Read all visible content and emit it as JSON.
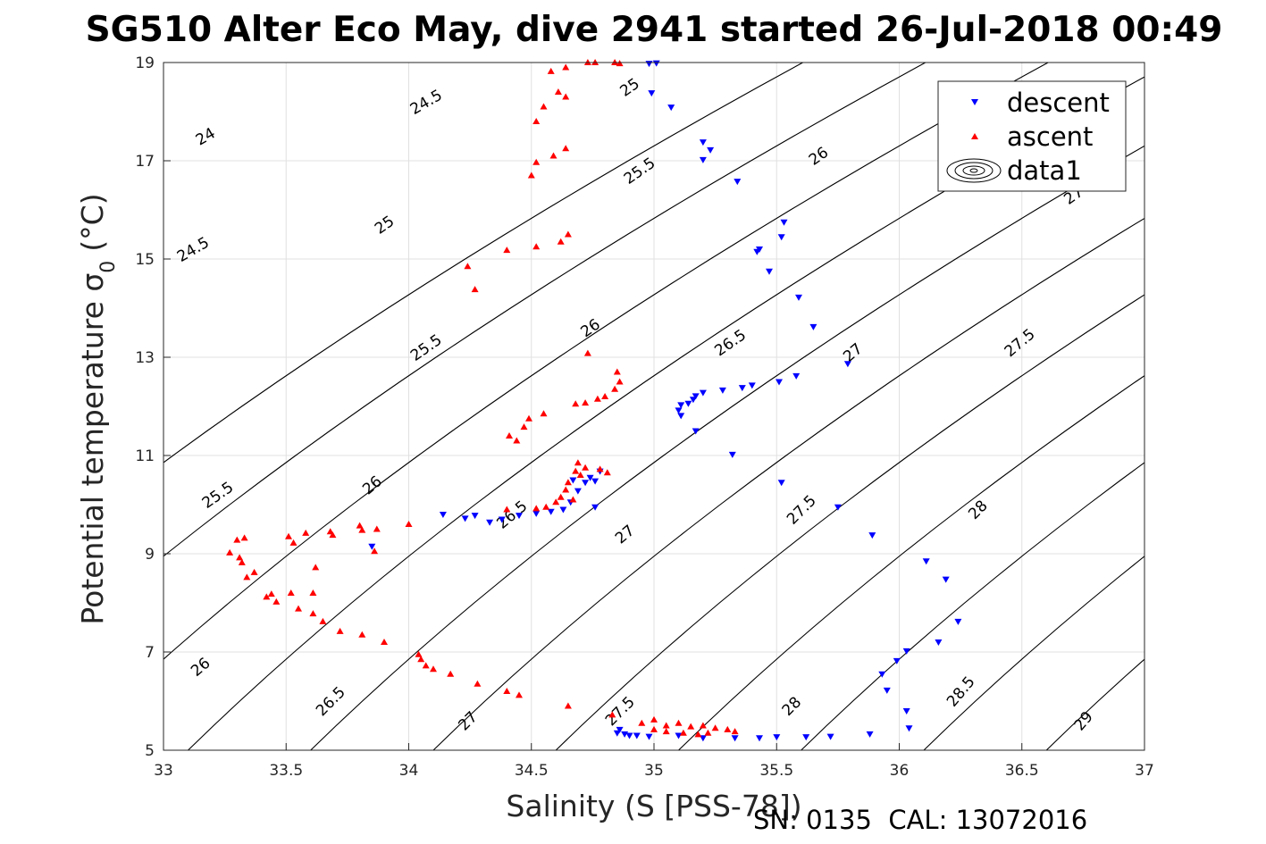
{
  "chart_data": {
    "type": "scatter",
    "title": "SG510 Alter Eco May, dive 2941 started 26-Jul-2018 00:49",
    "xlabel": "Salinity (S [PSS-78])",
    "ylabel": "Potential temperature σ",
    "ylabel_subscript": "0",
    "ylabel_unit": "(°C)",
    "xlim": [
      33,
      37
    ],
    "ylim": [
      5,
      19
    ],
    "x_ticks": [
      "33",
      "33.5",
      "34",
      "34.5",
      "35",
      "35.5",
      "36",
      "36.5",
      "37"
    ],
    "y_ticks": [
      "5",
      "7",
      "9",
      "11",
      "13",
      "15",
      "17",
      "19"
    ],
    "grid": true,
    "legend_position": "top-right",
    "legend": [
      "descent",
      "ascent",
      "data1"
    ],
    "footer": "SN: 0135  CAL: 13072016",
    "contour_labels": [
      {
        "text": "24",
        "at": [
          33.17,
          17.5
        ],
        "rot": -30
      },
      {
        "text": "24.5",
        "at": [
          33.12,
          15.2
        ],
        "rot": -30
      },
      {
        "text": "24.5",
        "at": [
          34.07,
          18.2
        ],
        "rot": -30
      },
      {
        "text": "25",
        "at": [
          33.9,
          15.7
        ],
        "rot": -35
      },
      {
        "text": "25",
        "at": [
          34.9,
          18.5
        ],
        "rot": -35
      },
      {
        "text": "25.5",
        "at": [
          33.22,
          10.2
        ],
        "rot": -35
      },
      {
        "text": "25.5",
        "at": [
          34.07,
          13.2
        ],
        "rot": -35
      },
      {
        "text": "25.5",
        "at": [
          34.94,
          16.8
        ],
        "rot": -35
      },
      {
        "text": "26",
        "at": [
          33.15,
          6.7
        ],
        "rot": -40
      },
      {
        "text": "26",
        "at": [
          33.85,
          10.4
        ],
        "rot": -40
      },
      {
        "text": "26",
        "at": [
          34.74,
          13.6
        ],
        "rot": -35
      },
      {
        "text": "26",
        "at": [
          35.67,
          17.1
        ],
        "rot": -35
      },
      {
        "text": "26.5",
        "at": [
          33.68,
          6.0
        ],
        "rot": -45
      },
      {
        "text": "26.5",
        "at": [
          34.42,
          9.8
        ],
        "rot": -40
      },
      {
        "text": "26.5",
        "at": [
          35.31,
          13.3
        ],
        "rot": -35
      },
      {
        "text": "27",
        "at": [
          34.24,
          5.6
        ],
        "rot": -45
      },
      {
        "text": "27",
        "at": [
          34.88,
          9.4
        ],
        "rot": -40
      },
      {
        "text": "27",
        "at": [
          35.81,
          13.1
        ],
        "rot": -40
      },
      {
        "text": "27",
        "at": [
          36.71,
          16.3
        ],
        "rot": -35
      },
      {
        "text": "27.5",
        "at": [
          34.86,
          5.8
        ],
        "rot": -45
      },
      {
        "text": "27.5",
        "at": [
          35.6,
          9.9
        ],
        "rot": -45
      },
      {
        "text": "27.5",
        "at": [
          36.49,
          13.3
        ],
        "rot": -40
      },
      {
        "text": "28",
        "at": [
          35.56,
          5.9
        ],
        "rot": -45
      },
      {
        "text": "28",
        "at": [
          36.32,
          9.9
        ],
        "rot": -45
      },
      {
        "text": "28.5",
        "at": [
          36.25,
          6.2
        ],
        "rot": -50
      },
      {
        "text": "29",
        "at": [
          36.75,
          5.6
        ],
        "rot": -50
      }
    ],
    "colors": {
      "descent": "#0000ff",
      "ascent": "#ff0000",
      "contour": "#000000",
      "grid": "#e0e0e0"
    },
    "series": [
      {
        "name": "descent",
        "marker": "triangle-down",
        "points": [
          [
            34.98,
            18.98
          ],
          [
            35.01,
            18.99
          ],
          [
            34.99,
            18.38
          ],
          [
            35.07,
            18.09
          ],
          [
            35.2,
            17.38
          ],
          [
            35.23,
            17.22
          ],
          [
            35.2,
            17.02
          ],
          [
            35.34,
            16.58
          ],
          [
            35.53,
            15.75
          ],
          [
            35.43,
            15.2
          ],
          [
            35.42,
            15.15
          ],
          [
            35.52,
            15.45
          ],
          [
            35.47,
            14.75
          ],
          [
            35.59,
            14.22
          ],
          [
            35.65,
            13.62
          ],
          [
            35.79,
            12.87
          ],
          [
            35.58,
            12.62
          ],
          [
            35.51,
            12.5
          ],
          [
            35.4,
            12.43
          ],
          [
            35.36,
            12.38
          ],
          [
            35.28,
            12.33
          ],
          [
            35.2,
            12.28
          ],
          [
            35.17,
            12.21
          ],
          [
            35.16,
            12.14
          ],
          [
            35.14,
            12.06
          ],
          [
            35.11,
            12.03
          ],
          [
            35.1,
            11.92
          ],
          [
            35.11,
            11.81
          ],
          [
            35.17,
            11.5
          ],
          [
            35.32,
            11.02
          ],
          [
            35.52,
            10.45
          ],
          [
            35.75,
            9.95
          ],
          [
            35.89,
            9.38
          ],
          [
            34.14,
            9.8
          ],
          [
            34.23,
            9.72
          ],
          [
            34.27,
            9.78
          ],
          [
            34.33,
            9.64
          ],
          [
            34.38,
            9.7
          ],
          [
            34.45,
            9.78
          ],
          [
            34.52,
            9.82
          ],
          [
            34.58,
            9.86
          ],
          [
            34.63,
            9.9
          ],
          [
            34.66,
            10.05
          ],
          [
            34.69,
            10.28
          ],
          [
            34.72,
            10.45
          ],
          [
            34.74,
            10.55
          ],
          [
            34.76,
            10.48
          ],
          [
            34.78,
            10.68
          ],
          [
            34.67,
            10.5
          ],
          [
            34.76,
            9.95
          ],
          [
            33.85,
            9.15
          ],
          [
            36.11,
            8.85
          ],
          [
            36.19,
            8.48
          ],
          [
            36.24,
            7.62
          ],
          [
            36.16,
            7.2
          ],
          [
            36.03,
            7.02
          ],
          [
            35.99,
            6.82
          ],
          [
            35.93,
            6.55
          ],
          [
            35.95,
            6.22
          ],
          [
            36.03,
            5.8
          ],
          [
            36.04,
            5.45
          ],
          [
            35.88,
            5.33
          ],
          [
            35.72,
            5.28
          ],
          [
            35.62,
            5.27
          ],
          [
            35.5,
            5.27
          ],
          [
            35.43,
            5.25
          ],
          [
            35.33,
            5.25
          ],
          [
            35.2,
            5.25
          ],
          [
            35.1,
            5.3
          ],
          [
            34.98,
            5.28
          ],
          [
            34.93,
            5.3
          ],
          [
            34.88,
            5.33
          ],
          [
            34.85,
            5.35
          ],
          [
            34.86,
            5.42
          ],
          [
            34.9,
            5.3
          ]
        ]
      },
      {
        "name": "ascent",
        "marker": "triangle-up",
        "points": [
          [
            34.73,
            19.0
          ],
          [
            34.76,
            19.0
          ],
          [
            34.84,
            19.0
          ],
          [
            34.86,
            18.98
          ],
          [
            34.64,
            18.9
          ],
          [
            34.58,
            18.82
          ],
          [
            34.61,
            18.4
          ],
          [
            34.64,
            18.3
          ],
          [
            34.55,
            18.1
          ],
          [
            34.52,
            17.8
          ],
          [
            34.64,
            17.25
          ],
          [
            34.59,
            17.1
          ],
          [
            34.52,
            16.97
          ],
          [
            34.5,
            16.7
          ],
          [
            34.65,
            15.5
          ],
          [
            34.62,
            15.35
          ],
          [
            34.52,
            15.25
          ],
          [
            34.4,
            15.18
          ],
          [
            34.24,
            14.85
          ],
          [
            34.27,
            14.38
          ],
          [
            34.73,
            13.08
          ],
          [
            34.85,
            12.7
          ],
          [
            34.86,
            12.5
          ],
          [
            34.84,
            12.35
          ],
          [
            34.8,
            12.2
          ],
          [
            34.77,
            12.15
          ],
          [
            34.72,
            12.07
          ],
          [
            34.68,
            12.05
          ],
          [
            34.55,
            11.85
          ],
          [
            34.49,
            11.75
          ],
          [
            34.47,
            11.58
          ],
          [
            34.44,
            11.3
          ],
          [
            34.41,
            11.4
          ],
          [
            34.69,
            10.85
          ],
          [
            34.72,
            10.75
          ],
          [
            34.78,
            10.72
          ],
          [
            34.81,
            10.65
          ],
          [
            34.7,
            10.6
          ],
          [
            34.68,
            10.68
          ],
          [
            34.65,
            10.45
          ],
          [
            34.64,
            10.3
          ],
          [
            34.62,
            10.15
          ],
          [
            34.6,
            10.05
          ],
          [
            34.67,
            10.1
          ],
          [
            34.56,
            9.95
          ],
          [
            34.52,
            9.92
          ],
          [
            34.4,
            9.9
          ],
          [
            33.3,
            9.28
          ],
          [
            33.33,
            9.32
          ],
          [
            33.27,
            9.02
          ],
          [
            33.31,
            8.92
          ],
          [
            33.32,
            8.82
          ],
          [
            33.37,
            8.62
          ],
          [
            33.34,
            8.52
          ],
          [
            33.44,
            8.18
          ],
          [
            33.42,
            8.12
          ],
          [
            33.46,
            8.02
          ],
          [
            33.52,
            8.2
          ],
          [
            33.51,
            9.35
          ],
          [
            33.53,
            9.22
          ],
          [
            33.58,
            9.42
          ],
          [
            33.62,
            8.72
          ],
          [
            33.61,
            8.2
          ],
          [
            33.55,
            7.88
          ],
          [
            33.61,
            7.78
          ],
          [
            33.65,
            7.62
          ],
          [
            33.72,
            7.42
          ],
          [
            33.68,
            9.45
          ],
          [
            33.69,
            9.38
          ],
          [
            33.8,
            9.57
          ],
          [
            33.81,
            9.48
          ],
          [
            33.87,
            9.5
          ],
          [
            33.86,
            9.05
          ],
          [
            33.81,
            7.35
          ],
          [
            33.9,
            7.2
          ],
          [
            34.0,
            9.6
          ],
          [
            34.04,
            6.95
          ],
          [
            34.05,
            6.85
          ],
          [
            34.07,
            6.72
          ],
          [
            34.1,
            6.65
          ],
          [
            34.17,
            6.55
          ],
          [
            34.28,
            6.35
          ],
          [
            34.4,
            6.2
          ],
          [
            34.45,
            6.12
          ],
          [
            34.65,
            5.9
          ],
          [
            34.83,
            5.72
          ],
          [
            34.95,
            5.55
          ],
          [
            35.0,
            5.62
          ],
          [
            35.05,
            5.5
          ],
          [
            35.1,
            5.55
          ],
          [
            35.15,
            5.48
          ],
          [
            35.2,
            5.5
          ],
          [
            35.25,
            5.45
          ],
          [
            35.3,
            5.42
          ],
          [
            35.33,
            5.38
          ],
          [
            35.0,
            5.42
          ],
          [
            35.05,
            5.38
          ],
          [
            35.12,
            5.35
          ],
          [
            35.18,
            5.32
          ],
          [
            35.22,
            5.35
          ]
        ]
      }
    ]
  }
}
